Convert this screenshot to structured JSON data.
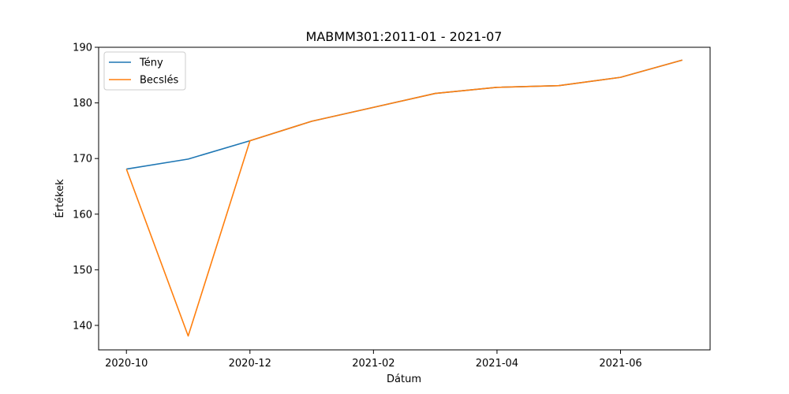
{
  "chart_data": {
    "type": "line",
    "title": "MABMM301:2011-01 - 2021-07",
    "xlabel": "Dátum",
    "ylabel": "Értékek",
    "x": [
      "2020-10",
      "2020-11",
      "2020-12",
      "2021-01",
      "2021-02",
      "2021-03",
      "2021-04",
      "2021-05",
      "2021-06",
      "2021-07"
    ],
    "series": [
      {
        "name": "Tény",
        "color": "#1f77b4",
        "values": [
          168.1,
          169.9,
          173.2,
          176.7,
          179.2,
          181.7,
          182.8,
          183.1,
          184.6,
          187.7
        ]
      },
      {
        "name": "Becslés",
        "color": "#ff7f0e",
        "values": [
          168.1,
          138.1,
          173.2,
          176.7,
          179.2,
          181.7,
          182.8,
          183.1,
          184.6,
          187.7
        ]
      }
    ],
    "ylim": [
      135.6,
      190
    ],
    "yticks": [
      140,
      150,
      160,
      170,
      180,
      190
    ],
    "xticks": [
      "2020-10",
      "2020-12",
      "2021-02",
      "2021-04",
      "2021-06"
    ],
    "legend": "top-left",
    "grid": false
  }
}
